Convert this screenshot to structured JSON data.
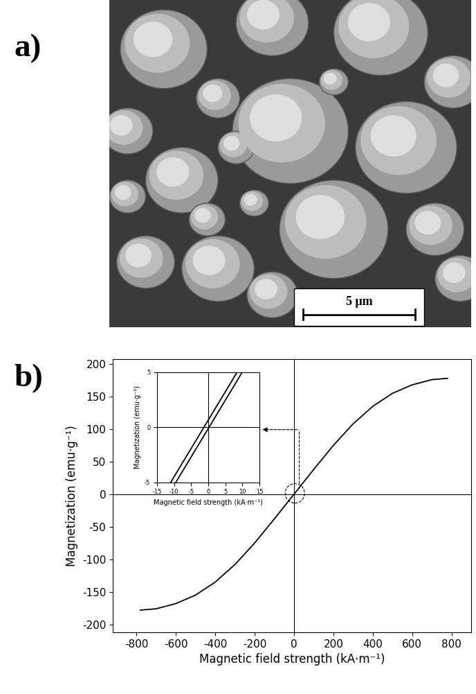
{
  "panel_labels": [
    "a)",
    "b)"
  ],
  "micrograph": {
    "scale_bar_label": "5 μm"
  },
  "chart_data": [
    {
      "type": "line",
      "x_label": "Magnetic field strength (kA·m⁻¹)",
      "y_label": "Magnetization (emu·g⁻¹)",
      "series": [
        {
          "color": "#000000",
          "x": [
            -780,
            -700,
            -600,
            -500,
            -400,
            -300,
            -200,
            -100,
            0,
            100,
            200,
            300,
            400,
            500,
            600,
            700,
            780
          ],
          "values": [
            -178,
            -176,
            -168,
            -155,
            -135,
            -108,
            -75,
            -38,
            0,
            38,
            75,
            108,
            135,
            155,
            168,
            176,
            178
          ]
        }
      ],
      "xlim": [
        -920,
        900
      ],
      "xticks": [
        -800,
        -600,
        -400,
        -200,
        0,
        200,
        400,
        600,
        800
      ],
      "ylim": [
        -212,
        208
      ],
      "yticks": [
        -200,
        -150,
        -100,
        -50,
        0,
        50,
        100,
        150,
        200
      ]
    },
    {
      "type": "line",
      "x_label": "Magnetic field strength (kA·m⁻¹)",
      "y_label": "Magnetization (emu·g⁻¹)",
      "series": [
        {
          "color": "#000000",
          "x": [
            -11,
            8.5
          ],
          "values": [
            -5,
            5
          ]
        },
        {
          "color": "#000000",
          "x": [
            -9.5,
            10
          ],
          "values": [
            -5,
            5
          ]
        }
      ],
      "xlim": [
        -15,
        15
      ],
      "xticks": [
        -15,
        -10,
        -5,
        0,
        5,
        10,
        15
      ],
      "ylim": [
        -5,
        5
      ],
      "yticks": [
        -5,
        0,
        5
      ]
    }
  ]
}
